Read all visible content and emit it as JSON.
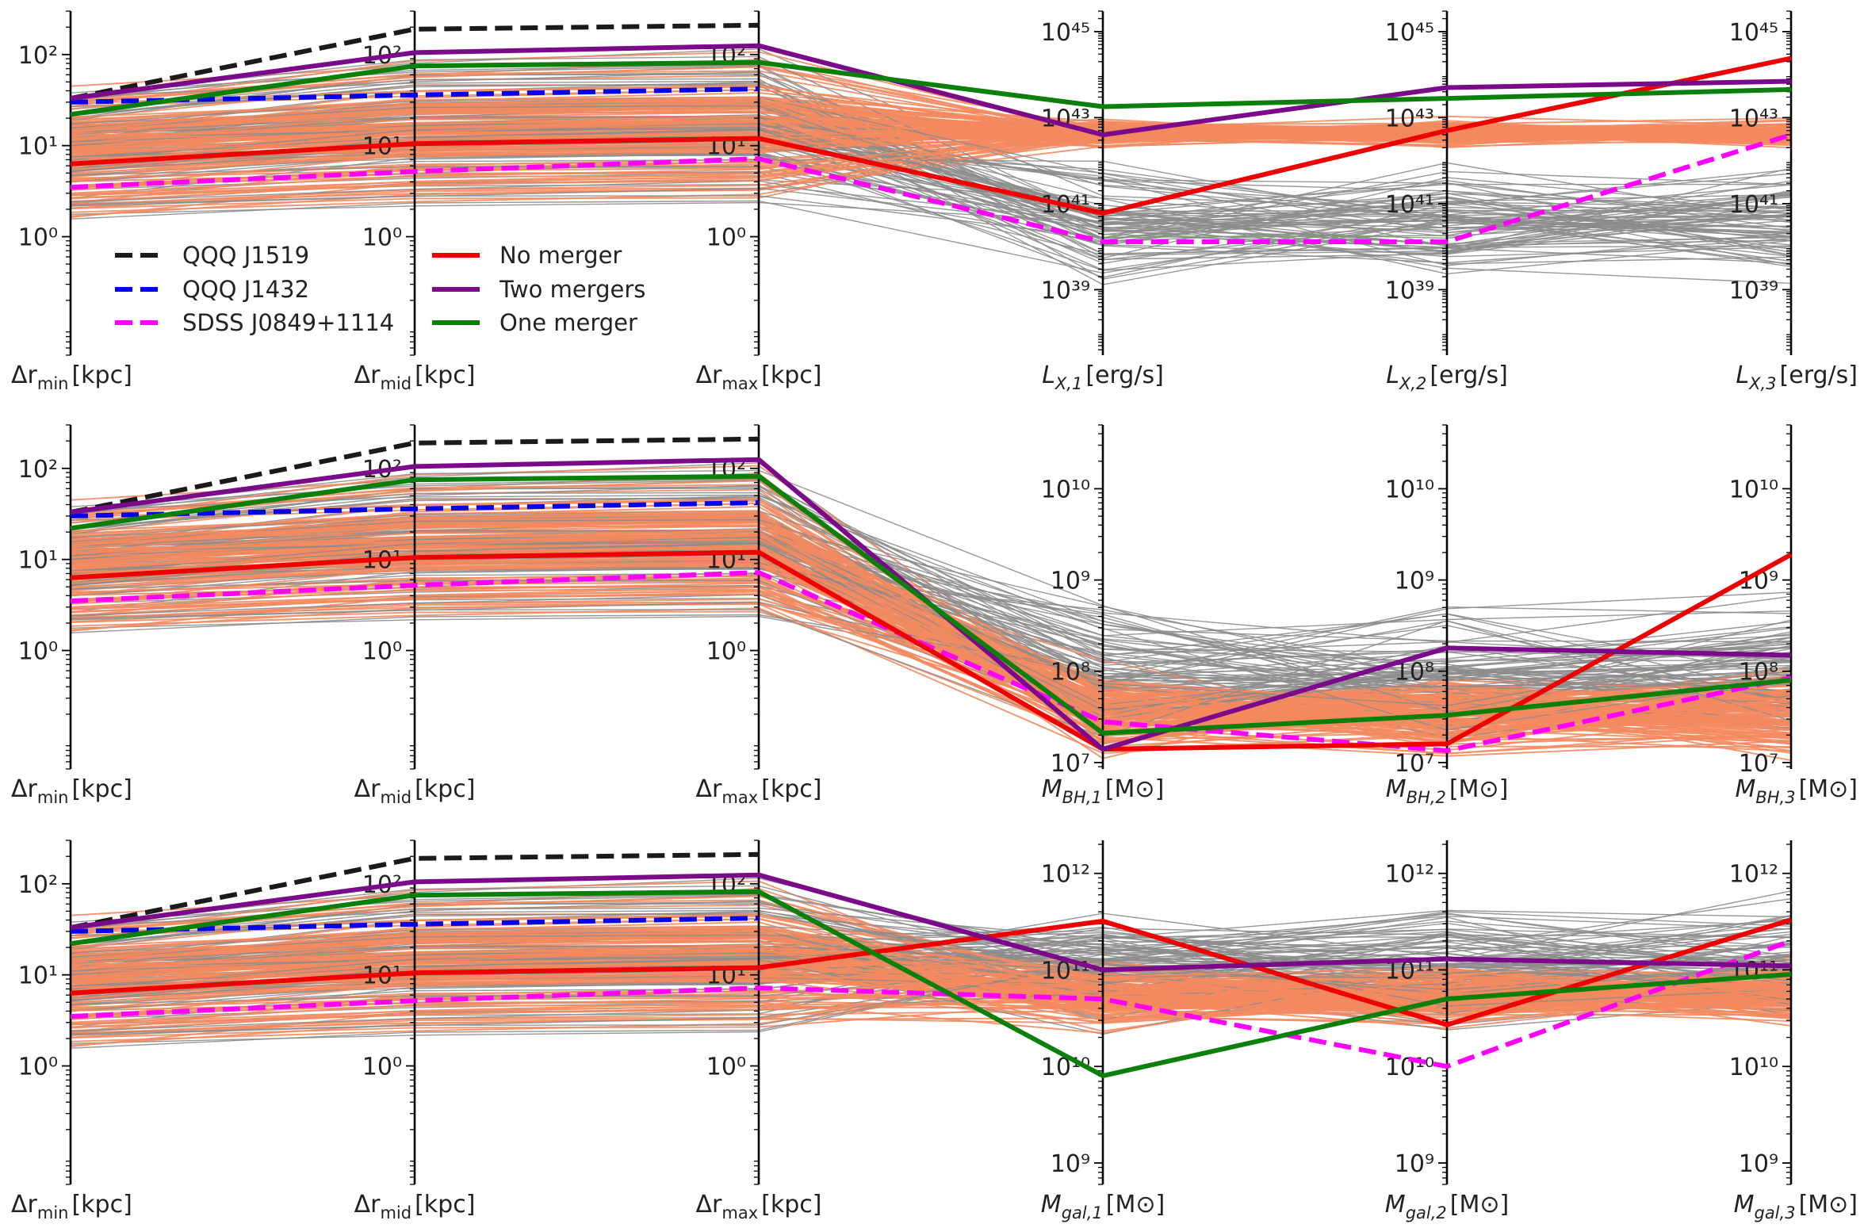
{
  "chart_data": {
    "type": "parallel-coordinates",
    "legend": [
      {
        "label": "QQQ J1519",
        "color": "#1a1a1a",
        "dashed": true
      },
      {
        "label": "QQQ J1432",
        "color": "#0000ee",
        "dashed": true
      },
      {
        "label": "SDSS J0849+1114",
        "color": "#ff00ff",
        "dashed": true
      },
      {
        "label": "No merger",
        "color": "#ee0000",
        "dashed": false
      },
      {
        "label": "Two mergers",
        "color": "#7b0a8a",
        "dashed": false
      },
      {
        "label": "One merger",
        "color": "#0a800a",
        "dashed": false
      }
    ],
    "background_colors": {
      "orange": "#f4895f",
      "grey": "#8c8c8c"
    },
    "panels": [
      {
        "name": "lx",
        "axes": [
          {
            "sym": "Δr",
            "sub": "min",
            "unit": "[kpc]",
            "range": [
              0.05,
              300
            ],
            "ticks": [
              {
                "v": 1,
                "t": "10⁰"
              },
              {
                "v": 10,
                "t": "10¹"
              },
              {
                "v": 100,
                "t": "10²"
              }
            ]
          },
          {
            "sym": "Δr",
            "sub": "mid",
            "unit": "[kpc]",
            "range": [
              0.05,
              300
            ],
            "ticks": [
              {
                "v": 1,
                "t": "10⁰"
              },
              {
                "v": 10,
                "t": "10¹"
              },
              {
                "v": 100,
                "t": "10²"
              }
            ]
          },
          {
            "sym": "Δr",
            "sub": "max",
            "unit": "[kpc]",
            "range": [
              0.05,
              300
            ],
            "ticks": [
              {
                "v": 1,
                "t": "10⁰"
              },
              {
                "v": 10,
                "t": "10¹"
              },
              {
                "v": 100,
                "t": "10²"
              }
            ]
          },
          {
            "sym": "L",
            "sub": "X,1",
            "unit": "[erg/s]",
            "range": [
              3e+37,
              3e+45
            ],
            "ticks": [
              {
                "v": 1e+39,
                "t": "10³⁹"
              },
              {
                "v": 1e+41,
                "t": "10⁴¹"
              },
              {
                "v": 1e+43,
                "t": "10⁴³"
              },
              {
                "v": 1e+45,
                "t": "10⁴⁵"
              }
            ]
          },
          {
            "sym": "L",
            "sub": "X,2",
            "unit": "[erg/s]",
            "range": [
              3e+37,
              3e+45
            ],
            "ticks": [
              {
                "v": 1e+39,
                "t": "10³⁹"
              },
              {
                "v": 1e+41,
                "t": "10⁴¹"
              },
              {
                "v": 1e+43,
                "t": "10⁴³"
              },
              {
                "v": 1e+45,
                "t": "10⁴⁵"
              }
            ]
          },
          {
            "sym": "L",
            "sub": "X,3",
            "unit": "[erg/s]",
            "range": [
              3e+37,
              3e+45
            ],
            "ticks": [
              {
                "v": 1e+39,
                "t": "10³⁹"
              },
              {
                "v": 1e+41,
                "t": "10⁴¹"
              },
              {
                "v": 1e+43,
                "t": "10⁴³"
              },
              {
                "v": 1e+45,
                "t": "10⁴⁵"
              }
            ]
          }
        ],
        "series": [
          {
            "name": "QQQ J1519",
            "values": [
              33,
              190,
              210
            ]
          },
          {
            "name": "QQQ J1432",
            "values": [
              30,
              36,
              42
            ]
          },
          {
            "name": "SDSS J0849+1114",
            "values": [
              3.5,
              5.2,
              7.2,
              1.3e+40,
              1.3e+40,
              4e+42
            ]
          },
          {
            "name": "No merger",
            "values": [
              6.3,
              10.5,
              12,
              6e+40,
              5e+42,
              2.4e+44
            ]
          },
          {
            "name": "Two mergers",
            "values": [
              33,
              105,
              125,
              4e+42,
              5e+43,
              7e+43
            ]
          },
          {
            "name": "One merger",
            "values": [
              22,
              75,
              82,
              1.8e+43,
              2.8e+43,
              4.5e+43
            ]
          }
        ]
      },
      {
        "name": "mbh",
        "axes": [
          {
            "sym": "Δr",
            "sub": "min",
            "unit": "[kpc]",
            "range": [
              0.05,
              300
            ],
            "ticks": [
              {
                "v": 1,
                "t": "10⁰"
              },
              {
                "v": 10,
                "t": "10¹"
              },
              {
                "v": 100,
                "t": "10²"
              }
            ]
          },
          {
            "sym": "Δr",
            "sub": "mid",
            "unit": "[kpc]",
            "range": [
              0.05,
              300
            ],
            "ticks": [
              {
                "v": 1,
                "t": "10⁰"
              },
              {
                "v": 10,
                "t": "10¹"
              },
              {
                "v": 100,
                "t": "10²"
              }
            ]
          },
          {
            "sym": "Δr",
            "sub": "max",
            "unit": "[kpc]",
            "range": [
              0.05,
              300
            ],
            "ticks": [
              {
                "v": 1,
                "t": "10⁰"
              },
              {
                "v": 10,
                "t": "10¹"
              },
              {
                "v": 100,
                "t": "10²"
              }
            ]
          },
          {
            "sym": "M",
            "sub": "BH,1",
            "unit": "[M⊙]",
            "range": [
              8500000.0,
              50000000000.0
            ],
            "ticks": [
              {
                "v": 10000000.0,
                "t": "10⁷"
              },
              {
                "v": 100000000.0,
                "t": "10⁸"
              },
              {
                "v": 1000000000.0,
                "t": "10⁹"
              },
              {
                "v": 10000000000.0,
                "t": "10¹⁰"
              }
            ]
          },
          {
            "sym": "M",
            "sub": "BH,2",
            "unit": "[M⊙]",
            "range": [
              8500000.0,
              50000000000.0
            ],
            "ticks": [
              {
                "v": 10000000.0,
                "t": "10⁷"
              },
              {
                "v": 100000000.0,
                "t": "10⁸"
              },
              {
                "v": 1000000000.0,
                "t": "10⁹"
              },
              {
                "v": 10000000000.0,
                "t": "10¹⁰"
              }
            ]
          },
          {
            "sym": "M",
            "sub": "BH,3",
            "unit": "[M⊙]",
            "range": [
              8500000.0,
              50000000000.0
            ],
            "ticks": [
              {
                "v": 10000000.0,
                "t": "10⁷"
              },
              {
                "v": 100000000.0,
                "t": "10⁸"
              },
              {
                "v": 1000000000.0,
                "t": "10⁹"
              },
              {
                "v": 10000000000.0,
                "t": "10¹⁰"
              }
            ]
          }
        ],
        "series": [
          {
            "name": "QQQ J1519",
            "values": [
              33,
              190,
              210
            ]
          },
          {
            "name": "QQQ J1432",
            "values": [
              30,
              36,
              42
            ]
          },
          {
            "name": "SDSS J0849+1114",
            "values": [
              3.5,
              5.2,
              7.2,
              28000000.0,
              13500000.0,
              85000000.0
            ]
          },
          {
            "name": "No merger",
            "values": [
              6.3,
              10.5,
              12,
              14000000.0,
              16000000.0,
              1900000000.0
            ]
          },
          {
            "name": "Two mergers",
            "values": [
              33,
              105,
              125,
              14000000.0,
              180000000.0,
              150000000.0
            ]
          },
          {
            "name": "One merger",
            "values": [
              22,
              75,
              82,
              21000000.0,
              33000000.0,
              80000000.0
            ]
          }
        ]
      },
      {
        "name": "mgal",
        "axes": [
          {
            "sym": "Δr",
            "sub": "min",
            "unit": "[kpc]",
            "range": [
              0.05,
              300
            ],
            "ticks": [
              {
                "v": 1,
                "t": "10⁰"
              },
              {
                "v": 10,
                "t": "10¹"
              },
              {
                "v": 100,
                "t": "10²"
              }
            ]
          },
          {
            "sym": "Δr",
            "sub": "mid",
            "unit": "[kpc]",
            "range": [
              0.05,
              300
            ],
            "ticks": [
              {
                "v": 1,
                "t": "10⁰"
              },
              {
                "v": 10,
                "t": "10¹"
              },
              {
                "v": 100,
                "t": "10²"
              }
            ]
          },
          {
            "sym": "Δr",
            "sub": "max",
            "unit": "[kpc]",
            "range": [
              0.05,
              300
            ],
            "ticks": [
              {
                "v": 1,
                "t": "10⁰"
              },
              {
                "v": 10,
                "t": "10¹"
              },
              {
                "v": 100,
                "t": "10²"
              }
            ]
          },
          {
            "sym": "M",
            "sub": "gal,1",
            "unit": "[M⊙]",
            "range": [
              600000000.0,
              2200000000000.0
            ],
            "ticks": [
              {
                "v": 1000000000.0,
                "t": "10⁹"
              },
              {
                "v": 10000000000.0,
                "t": "10¹⁰"
              },
              {
                "v": 100000000000.0,
                "t": "10¹¹"
              },
              {
                "v": 1000000000000.0,
                "t": "10¹²"
              }
            ]
          },
          {
            "sym": "M",
            "sub": "gal,2",
            "unit": "[M⊙]",
            "range": [
              600000000.0,
              2200000000000.0
            ],
            "ticks": [
              {
                "v": 1000000000.0,
                "t": "10⁹"
              },
              {
                "v": 10000000000.0,
                "t": "10¹⁰"
              },
              {
                "v": 100000000000.0,
                "t": "10¹¹"
              },
              {
                "v": 1000000000000.0,
                "t": "10¹²"
              }
            ]
          },
          {
            "sym": "M",
            "sub": "gal,3",
            "unit": "[M⊙]",
            "range": [
              600000000.0,
              2200000000000.0
            ],
            "ticks": [
              {
                "v": 1000000000.0,
                "t": "10⁹"
              },
              {
                "v": 10000000000.0,
                "t": "10¹⁰"
              },
              {
                "v": 100000000000.0,
                "t": "10¹¹"
              },
              {
                "v": 1000000000000.0,
                "t": "10¹²"
              }
            ]
          }
        ],
        "series": [
          {
            "name": "QQQ J1519",
            "values": [
              33,
              190,
              210
            ]
          },
          {
            "name": "QQQ J1432",
            "values": [
              30,
              36,
              42
            ]
          },
          {
            "name": "SDSS J0849+1114",
            "values": [
              3.5,
              5.2,
              7.2,
              50000000000.0,
              10000000000.0,
              200000000000.0
            ]
          },
          {
            "name": "No merger",
            "values": [
              6.3,
              10.5,
              12,
              320000000000.0,
              27000000000.0,
              330000000000.0
            ]
          },
          {
            "name": "Two mergers",
            "values": [
              33,
              105,
              125,
              100000000000.0,
              130000000000.0,
              110000000000.0
            ]
          },
          {
            "name": "One merger",
            "values": [
              22,
              75,
              82,
              8000000000.0,
              50000000000.0,
              90000000000.0
            ]
          }
        ]
      }
    ]
  }
}
